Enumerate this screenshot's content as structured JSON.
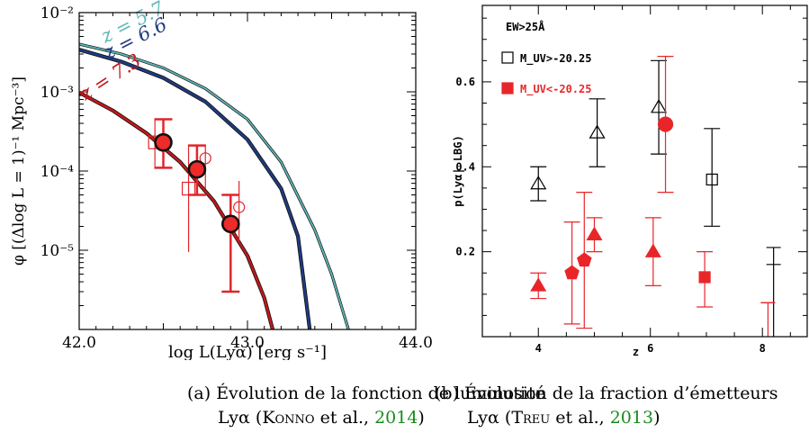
{
  "chart_data": [
    {
      "type": "line",
      "xlabel": "log L(Lyα) [erg s⁻¹]",
      "ylabel": "φ [(Δlog L = 1)⁻¹ Mpc⁻³]",
      "xlim": [
        42.0,
        44.0
      ],
      "ylim": [
        1e-06,
        0.01
      ],
      "yscale": "log",
      "x_ticks": [
        "42.0",
        "43.0",
        "44.0"
      ],
      "y_ticks": [
        "10⁻²",
        "10⁻³",
        "10⁻⁴",
        "10⁻⁵"
      ],
      "series": [
        {
          "name": "z = 5.7",
          "color": "#5fb8b8",
          "x": [
            42.0,
            42.25,
            42.5,
            42.75,
            43.0,
            43.2,
            43.4,
            43.5,
            43.6
          ],
          "y": [
            0.004,
            0.003,
            0.002,
            0.0011,
            0.00045,
            0.00013,
            1.8e-05,
            5e-06,
            1e-06
          ]
        },
        {
          "name": "z = 6.6",
          "color": "#1f3b80",
          "x": [
            42.0,
            42.25,
            42.5,
            42.75,
            43.0,
            43.2,
            43.3,
            43.37
          ],
          "y": [
            0.0034,
            0.0024,
            0.0015,
            0.00075,
            0.00025,
            6e-05,
            1.5e-05,
            1e-06
          ]
        },
        {
          "name": "z = 7.3",
          "color": "#c0181a",
          "x": [
            42.0,
            42.2,
            42.4,
            42.6,
            42.8,
            43.0,
            43.1,
            43.15
          ],
          "y": [
            0.00098,
            0.00058,
            0.0003,
            0.00013,
            4.2e-05,
            8.5e-06,
            2.5e-06,
            1e-06
          ]
        }
      ],
      "points": {
        "filled_circles": [
          {
            "x": 42.5,
            "y": 0.00023,
            "err_lo": 0.00011,
            "err_hi": 0.00045
          },
          {
            "x": 42.7,
            "y": 0.000105,
            "err_lo": 5e-05,
            "err_hi": 0.00021
          },
          {
            "x": 42.9,
            "y": 2.15e-05,
            "err_lo": 3e-06,
            "err_hi": 5e-05
          }
        ],
        "open_squares": [
          {
            "x": 42.45,
            "y": 0.00023,
            "err_lo": 0.00011,
            "err_hi": 0.00045
          },
          {
            "x": 42.65,
            "y": 6e-05,
            "err_lo": 9.5e-06,
            "err_hi": 0.00021
          }
        ],
        "open_circles": [
          {
            "x": 42.75,
            "y": 0.000145,
            "err_lo": 6e-05,
            "err_hi": 0.00021
          },
          {
            "x": 42.95,
            "y": 3.5e-05,
            "err_lo": 1.3e-05,
            "err_hi": 7.5e-05
          }
        ]
      },
      "curve_labels": [
        "z = 5.7",
        "z = 6.6",
        "z = 7.3"
      ]
    },
    {
      "type": "scatter",
      "xlabel": "z",
      "ylabel": "p(Lyα| LBG)",
      "xlim": [
        3.0,
        8.8
      ],
      "ylim": [
        0.0,
        0.78
      ],
      "x_ticks": [
        "4",
        "6",
        "8"
      ],
      "y_ticks": [
        "0.2",
        "0.4",
        "0.6"
      ],
      "annotation": "EW>25Å",
      "legend": [
        {
          "label": "M_UV>-20.25",
          "marker": "open-square",
          "color": "#000000"
        },
        {
          "label": "M_UV<-20.25",
          "marker": "filled-square",
          "color": "#e8262a"
        }
      ],
      "series": [
        {
          "name": "M_UV>-20.25",
          "color": "#000000",
          "points": [
            {
              "x": 4.0,
              "y": 0.36,
              "lo": 0.32,
              "hi": 0.4,
              "marker": "open-triangle"
            },
            {
              "x": 5.05,
              "y": 0.48,
              "lo": 0.4,
              "hi": 0.56,
              "marker": "open-triangle"
            },
            {
              "x": 6.15,
              "y": 0.54,
              "lo": 0.43,
              "hi": 0.65,
              "marker": "open-triangle"
            },
            {
              "x": 7.1,
              "y": 0.37,
              "lo": 0.26,
              "hi": 0.49,
              "marker": "open-square"
            },
            {
              "x": 8.2,
              "y": 0.17,
              "lo": 0.0,
              "hi": 0.21,
              "marker": "upper-limit"
            }
          ]
        },
        {
          "name": "M_UV<-20.25",
          "color": "#e8262a",
          "points": [
            {
              "x": 4.0,
              "y": 0.12,
              "lo": 0.09,
              "hi": 0.15,
              "marker": "filled-triangle"
            },
            {
              "x": 4.6,
              "y": 0.15,
              "lo": 0.03,
              "hi": 0.27,
              "marker": "filled-pentagon"
            },
            {
              "x": 4.82,
              "y": 0.18,
              "lo": 0.02,
              "hi": 0.34,
              "marker": "filled-pentagon"
            },
            {
              "x": 5.0,
              "y": 0.24,
              "lo": 0.2,
              "hi": 0.28,
              "marker": "filled-triangle"
            },
            {
              "x": 6.05,
              "y": 0.2,
              "lo": 0.12,
              "hi": 0.28,
              "marker": "filled-triangle"
            },
            {
              "x": 6.27,
              "y": 0.5,
              "lo": 0.34,
              "hi": 0.66,
              "marker": "filled-circle"
            },
            {
              "x": 6.97,
              "y": 0.14,
              "lo": 0.07,
              "hi": 0.2,
              "marker": "filled-square"
            },
            {
              "x": 8.1,
              "y": 0.08,
              "lo": 0.0,
              "hi": 0.08,
              "marker": "upper-limit"
            }
          ]
        }
      ]
    }
  ],
  "captions": {
    "a": {
      "line1": "(a) Évolution de la fonction de luminosité",
      "line2_pre": "Lyα (",
      "author": "Konno",
      "etal": " et al., ",
      "year": "2014",
      "close": ")"
    },
    "b": {
      "line1": "(b) Évolution de la fraction d’émetteurs",
      "line2_pre": "Lyα (",
      "author": "Treu",
      "etal": " et al., ",
      "year": "2013",
      "close": ")"
    }
  }
}
